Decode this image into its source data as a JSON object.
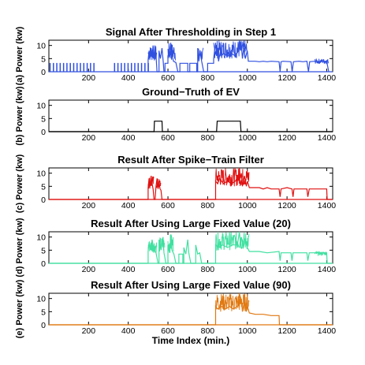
{
  "chart_data": [
    {
      "type": "line",
      "panel": "(a)",
      "title": "Signal After Thresholding in Step 1",
      "ylabel": "Power (kw)",
      "xlabel": "",
      "xlim": [
        0,
        1430
      ],
      "ylim": [
        0,
        12
      ],
      "xticks": [
        200,
        400,
        600,
        800,
        1000,
        1200,
        1400
      ],
      "yticks": [
        0,
        5,
        10
      ],
      "color": "#3050e0",
      "spikes": [
        {
          "x": [
            5,
            240
          ],
          "step": 17,
          "h": 3.2,
          "w": 2
        },
        {
          "x": [
            330,
            500
          ],
          "step": 17,
          "h": 3.2,
          "w": 2
        }
      ],
      "segments": [
        [
          500,
          0
        ],
        [
          500,
          4.5
        ],
        [
          505,
          8
        ],
        [
          510,
          5
        ],
        [
          515,
          9
        ],
        [
          520,
          6
        ],
        [
          525,
          10
        ],
        [
          530,
          5
        ],
        [
          535,
          9
        ],
        [
          540,
          6
        ],
        [
          545,
          0
        ],
        [
          555,
          0
        ],
        [
          555,
          8
        ],
        [
          562,
          5
        ],
        [
          570,
          9
        ],
        [
          576,
          4
        ],
        [
          580,
          0
        ],
        [
          585,
          0
        ],
        [
          585,
          3.2
        ],
        [
          600,
          3.2
        ],
        [
          600,
          6
        ],
        [
          608,
          8
        ],
        [
          614,
          11
        ],
        [
          620,
          6
        ],
        [
          628,
          4
        ],
        [
          640,
          3.5
        ],
        [
          650,
          0
        ],
        [
          660,
          0
        ],
        [
          660,
          3.2
        ],
        [
          700,
          3.2
        ],
        [
          700,
          0
        ],
        [
          710,
          0
        ],
        [
          710,
          3.2
        ],
        [
          745,
          3.2
        ],
        [
          745,
          0
        ],
        [
          750,
          0
        ],
        [
          750,
          9
        ],
        [
          756,
          4
        ],
        [
          762,
          8
        ],
        [
          770,
          4
        ],
        [
          780,
          0
        ],
        [
          800,
          0
        ],
        [
          800,
          3.2
        ],
        [
          830,
          3.2
        ],
        [
          830,
          5
        ],
        [
          835,
          8
        ],
        [
          840,
          11
        ],
        [
          845,
          6
        ],
        [
          850,
          9
        ],
        [
          855,
          4
        ],
        [
          865,
          8
        ],
        [
          870,
          6
        ],
        [
          880,
          7
        ],
        [
          900,
          6
        ],
        [
          920,
          7
        ],
        [
          940,
          6
        ],
        [
          955,
          8
        ],
        [
          960,
          12
        ],
        [
          965,
          8
        ],
        [
          970,
          10
        ],
        [
          975,
          5
        ],
        [
          982,
          9
        ],
        [
          990,
          5
        ],
        [
          1000,
          8
        ],
        [
          1005,
          4
        ],
        [
          1020,
          4
        ],
        [
          1040,
          4
        ],
        [
          1060,
          3.8
        ],
        [
          1080,
          4
        ],
        [
          1100,
          3.8
        ],
        [
          1120,
          4
        ],
        [
          1160,
          3.8
        ],
        [
          1165,
          0
        ],
        [
          1170,
          3.8
        ],
        [
          1180,
          4
        ],
        [
          1220,
          3.8
        ],
        [
          1226,
          0
        ],
        [
          1232,
          3.8
        ],
        [
          1260,
          4
        ],
        [
          1280,
          3.8
        ],
        [
          1300,
          4
        ],
        [
          1308,
          0
        ],
        [
          1314,
          3.8
        ],
        [
          1340,
          4
        ],
        [
          1360,
          3.8
        ],
        [
          1380,
          4
        ],
        [
          1400,
          4
        ],
        [
          1410,
          0
        ]
      ],
      "dense": [
        [
          500,
          545,
          4,
          10
        ],
        [
          600,
          640,
          4,
          11
        ],
        [
          750,
          780,
          4,
          9
        ],
        [
          830,
          1000,
          5,
          12
        ],
        [
          1340,
          1410,
          3,
          5
        ]
      ]
    },
    {
      "type": "line",
      "panel": "(b)",
      "title": "Ground−Truth of EV",
      "ylabel": "Power (kw)",
      "xlabel": "",
      "xlim": [
        0,
        1430
      ],
      "ylim": [
        0,
        12
      ],
      "xticks": [
        200,
        400,
        600,
        800,
        1000,
        1200,
        1400
      ],
      "yticks": [
        0,
        5,
        10
      ],
      "color": "#000000",
      "segments": [
        [
          0,
          0
        ],
        [
          530,
          0
        ],
        [
          532,
          4
        ],
        [
          570,
          4
        ],
        [
          572,
          0
        ],
        [
          845,
          0
        ],
        [
          848,
          4
        ],
        [
          965,
          4
        ],
        [
          968,
          0
        ],
        [
          1430,
          0
        ]
      ]
    },
    {
      "type": "line",
      "panel": "(c)",
      "title": "Result After Spike−Train Filter",
      "ylabel": "Power (kw)",
      "xlabel": "",
      "xlim": [
        0,
        1430
      ],
      "ylim": [
        0,
        12
      ],
      "xticks": [
        200,
        400,
        600,
        800,
        1000,
        1200,
        1400
      ],
      "yticks": [
        0,
        5,
        10
      ],
      "color": "#e01010",
      "segments": [
        [
          0,
          0
        ],
        [
          500,
          0
        ],
        [
          500,
          4.5
        ],
        [
          505,
          8
        ],
        [
          510,
          5
        ],
        [
          515,
          9
        ],
        [
          520,
          6
        ],
        [
          525,
          4
        ],
        [
          530,
          0
        ],
        [
          535,
          0
        ],
        [
          540,
          5
        ],
        [
          545,
          8
        ],
        [
          550,
          4
        ],
        [
          555,
          7
        ],
        [
          560,
          4
        ],
        [
          565,
          3.5
        ],
        [
          570,
          0
        ],
        [
          840,
          0
        ],
        [
          840,
          7
        ],
        [
          850,
          6
        ],
        [
          860,
          8
        ],
        [
          880,
          6
        ],
        [
          900,
          7
        ],
        [
          920,
          6
        ],
        [
          940,
          7
        ],
        [
          955,
          9
        ],
        [
          960,
          12
        ],
        [
          965,
          8
        ],
        [
          970,
          10
        ],
        [
          975,
          5
        ],
        [
          985,
          9
        ],
        [
          995,
          5
        ],
        [
          1000,
          7
        ],
        [
          1010,
          4.5
        ],
        [
          1060,
          4.5
        ],
        [
          1080,
          4
        ],
        [
          1100,
          4.5
        ],
        [
          1120,
          4
        ],
        [
          1160,
          4
        ],
        [
          1165,
          1
        ],
        [
          1170,
          4
        ],
        [
          1200,
          4.5
        ],
        [
          1225,
          4
        ],
        [
          1230,
          1
        ],
        [
          1235,
          4
        ],
        [
          1260,
          4
        ],
        [
          1290,
          4
        ],
        [
          1300,
          4
        ],
        [
          1305,
          1
        ],
        [
          1312,
          4
        ],
        [
          1340,
          4
        ],
        [
          1380,
          4
        ],
        [
          1400,
          4
        ],
        [
          1402,
          0
        ],
        [
          1430,
          0
        ]
      ],
      "dense": [
        [
          500,
          530,
          4,
          9
        ],
        [
          540,
          565,
          4,
          8
        ],
        [
          840,
          1010,
          5,
          12
        ]
      ]
    },
    {
      "type": "line",
      "panel": "(d)",
      "title": "Result After Using Large Fixed Value (20)",
      "ylabel": "Power (kw)",
      "xlabel": "",
      "xlim": [
        0,
        1430
      ],
      "ylim": [
        0,
        12
      ],
      "xticks": [
        200,
        400,
        600,
        800,
        1000,
        1200,
        1400
      ],
      "yticks": [
        0,
        5,
        10
      ],
      "color": "#40e0a0",
      "segments": [
        [
          0,
          0
        ],
        [
          500,
          0
        ],
        [
          500,
          4.5
        ],
        [
          505,
          8
        ],
        [
          515,
          5
        ],
        [
          520,
          9
        ],
        [
          530,
          5
        ],
        [
          540,
          4
        ],
        [
          550,
          0
        ],
        [
          555,
          0
        ],
        [
          555,
          9
        ],
        [
          565,
          5
        ],
        [
          575,
          10
        ],
        [
          580,
          4
        ],
        [
          590,
          0
        ],
        [
          600,
          0
        ],
        [
          600,
          7
        ],
        [
          608,
          4
        ],
        [
          615,
          11
        ],
        [
          620,
          5
        ],
        [
          630,
          3.5
        ],
        [
          640,
          0
        ],
        [
          655,
          0
        ],
        [
          655,
          3.5
        ],
        [
          675,
          3.5
        ],
        [
          675,
          0
        ],
        [
          680,
          0
        ],
        [
          680,
          6
        ],
        [
          690,
          3.5
        ],
        [
          700,
          9
        ],
        [
          705,
          4
        ],
        [
          715,
          0
        ],
        [
          740,
          0
        ],
        [
          740,
          7
        ],
        [
          750,
          3.5
        ],
        [
          760,
          4
        ],
        [
          770,
          0
        ],
        [
          840,
          0
        ],
        [
          840,
          7
        ],
        [
          855,
          6
        ],
        [
          875,
          7
        ],
        [
          900,
          6
        ],
        [
          925,
          7
        ],
        [
          950,
          7
        ],
        [
          960,
          12
        ],
        [
          965,
          8
        ],
        [
          970,
          10
        ],
        [
          980,
          6
        ],
        [
          990,
          9
        ],
        [
          1000,
          6
        ],
        [
          1010,
          4.5
        ],
        [
          1060,
          4.5
        ],
        [
          1100,
          4
        ],
        [
          1160,
          4.5
        ],
        [
          1165,
          1
        ],
        [
          1170,
          4
        ],
        [
          1220,
          4
        ],
        [
          1225,
          1
        ],
        [
          1230,
          4
        ],
        [
          1280,
          4
        ],
        [
          1300,
          4
        ],
        [
          1305,
          1
        ],
        [
          1312,
          4
        ],
        [
          1380,
          4
        ],
        [
          1400,
          4
        ],
        [
          1402,
          0
        ],
        [
          1430,
          0
        ]
      ],
      "dense": [
        [
          500,
          545,
          4,
          9
        ],
        [
          555,
          585,
          4,
          10
        ],
        [
          600,
          630,
          4,
          11
        ],
        [
          840,
          1010,
          5,
          12
        ],
        [
          1340,
          1400,
          3,
          4.5
        ]
      ]
    },
    {
      "type": "line",
      "panel": "(e)",
      "title": "Result After Using Large Fixed Value (90)",
      "ylabel": "Power (kw)",
      "xlabel": "Time Index (min.)",
      "xlim": [
        0,
        1430
      ],
      "ylim": [
        0,
        12
      ],
      "xticks": [
        200,
        400,
        600,
        800,
        1000,
        1200,
        1400
      ],
      "yticks": [
        0,
        5,
        10
      ],
      "color": "#e07810",
      "segments": [
        [
          0,
          0
        ],
        [
          840,
          0
        ],
        [
          840,
          7
        ],
        [
          850,
          6
        ],
        [
          870,
          7
        ],
        [
          890,
          6
        ],
        [
          910,
          7
        ],
        [
          930,
          6
        ],
        [
          950,
          7
        ],
        [
          960,
          12
        ],
        [
          965,
          8
        ],
        [
          970,
          10
        ],
        [
          975,
          5
        ],
        [
          985,
          9
        ],
        [
          995,
          5
        ],
        [
          1000,
          7
        ],
        [
          1010,
          4.5
        ],
        [
          1040,
          4
        ],
        [
          1080,
          4
        ],
        [
          1120,
          3.5
        ],
        [
          1160,
          3.5
        ],
        [
          1162,
          0
        ],
        [
          1430,
          0
        ]
      ],
      "dense": [
        [
          840,
          1010,
          5,
          12
        ]
      ]
    }
  ]
}
